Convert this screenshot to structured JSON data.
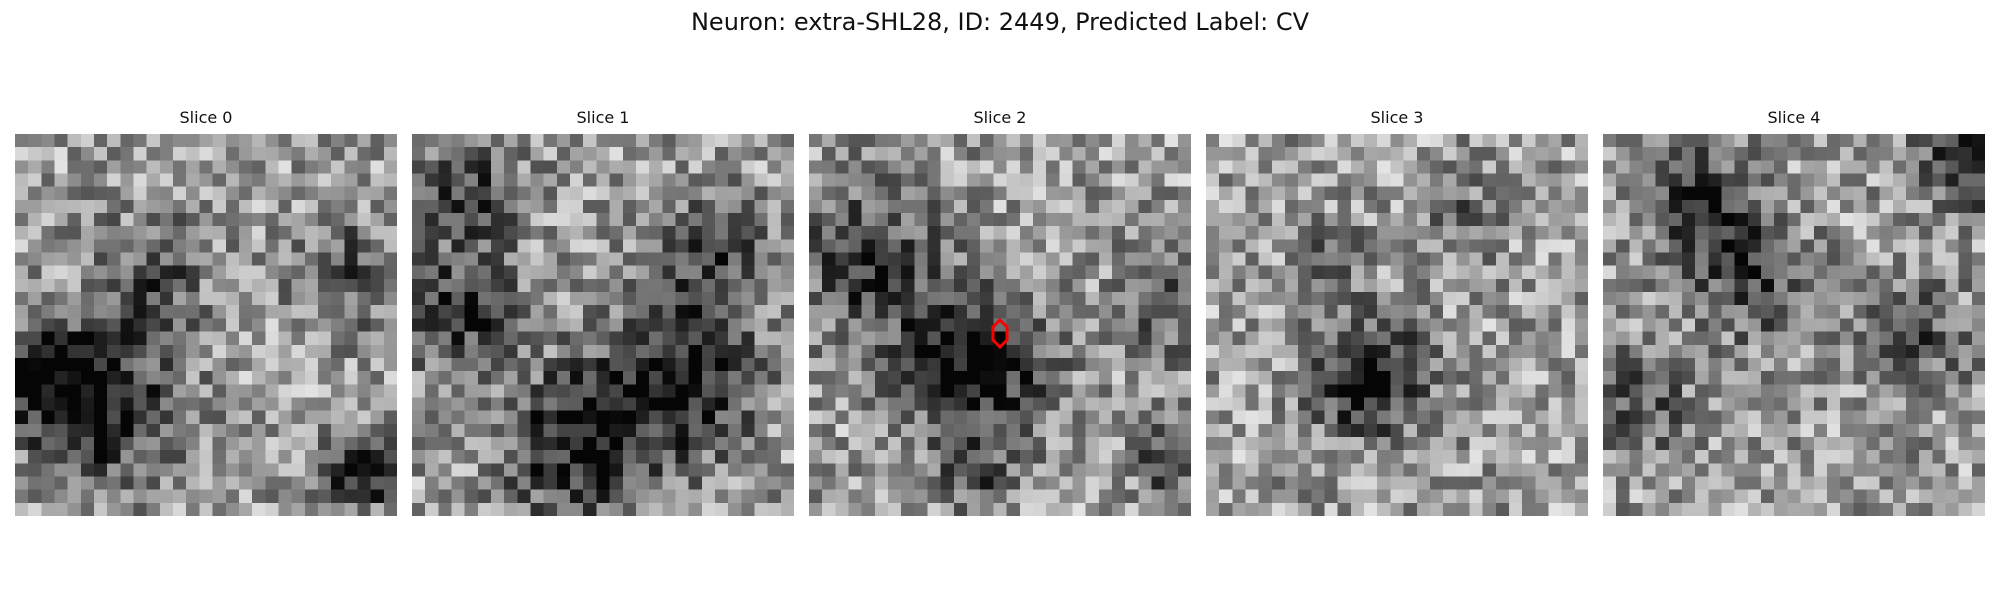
{
  "figure": {
    "title": "Neuron: extra-SHL28, ID: 2449, Predicted Label: CV"
  },
  "slices": [
    {
      "label": "Slice 0"
    },
    {
      "label": "Slice 1"
    },
    {
      "label": "Slice 2"
    },
    {
      "label": "Slice 3"
    },
    {
      "label": "Slice 4"
    }
  ],
  "colors": {
    "marker": "#ff0000",
    "background": "#ffffff"
  },
  "marker": {
    "slice_index": 2,
    "shape": "hexagon-outline"
  }
}
